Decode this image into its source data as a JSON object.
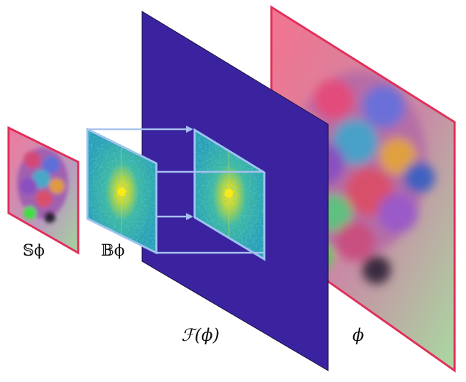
{
  "labels": {
    "small_spectrum": "𝕊ϕ",
    "band_spectrum": "𝔹ϕ",
    "fourier": "ℱ(ϕ)",
    "field": "ϕ"
  },
  "colors": {
    "frame_border": "#e0305a",
    "fourier_plane": "#3b23a0",
    "fourier_edge": "#1a1040",
    "spectrum_border": "#9ec3f0",
    "spectrum_fill": "#2aa6a8",
    "spectrum_center": "#f5e21a",
    "arrow": "#a7c2ef"
  }
}
